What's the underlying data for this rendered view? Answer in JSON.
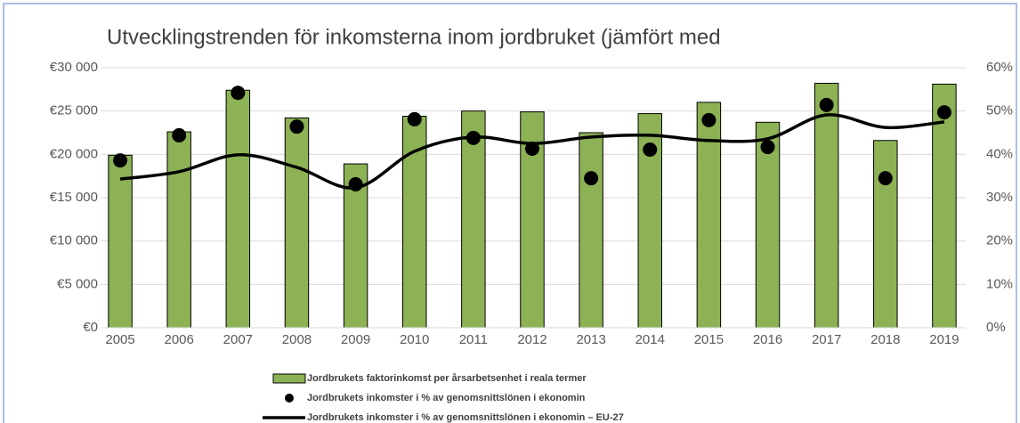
{
  "chart_data": {
    "type": "combo",
    "title": "Utvecklingstrenden för inkomsterna inom jordbruket (jämfört med",
    "categories": [
      "2005",
      "2006",
      "2007",
      "2008",
      "2009",
      "2010",
      "2011",
      "2012",
      "2013",
      "2014",
      "2015",
      "2016",
      "2017",
      "2018",
      "2019"
    ],
    "series": [
      {
        "name": "Jordbrukets faktorinkomst per årsarbetsenhet i reala termer",
        "type": "bar",
        "color": "#8db255",
        "values": [
          19900,
          22600,
          27400,
          24200,
          18900,
          24400,
          25000,
          24900,
          22500,
          24700,
          26000,
          23700,
          28200,
          21600,
          28100
        ]
      },
      {
        "name": "Jordbrukets inkomster i % av genomsnittslönen i ekonomin",
        "type": "scatter",
        "axis": "y2",
        "color": "#000000",
        "values": [
          38.6,
          44.4,
          54.2,
          46.4,
          33.1,
          48.1,
          43.8,
          41.3,
          34.5,
          41.1,
          47.9,
          41.7,
          51.4,
          34.5,
          49.7
        ]
      },
      {
        "name": "Jordbrukets inkomster i % av genomsnittslönen i ekonomin – EU-27",
        "type": "line",
        "axis": "y2",
        "color": "#000000",
        "values": [
          34.3,
          36.0,
          39.9,
          37.0,
          32.3,
          40.7,
          44.0,
          42.5,
          44.0,
          44.4,
          43.2,
          43.6,
          49.1,
          46.2,
          47.5
        ]
      }
    ],
    "ylim": [
      0,
      30000
    ],
    "yticks": [
      {
        "value": 0,
        "label": "€0"
      },
      {
        "value": 5000,
        "label": "€5 000"
      },
      {
        "value": 10000,
        "label": "€10 000"
      },
      {
        "value": 15000,
        "label": "€15 000"
      },
      {
        "value": 20000,
        "label": "€20 000"
      },
      {
        "value": 25000,
        "label": "€25 000"
      },
      {
        "value": 30000,
        "label": "€30 000"
      }
    ],
    "y2lim": [
      0,
      60
    ],
    "y2ticks": [
      {
        "value": 0,
        "label": "0%"
      },
      {
        "value": 10,
        "label": "10%"
      },
      {
        "value": 20,
        "label": "20%"
      },
      {
        "value": 30,
        "label": "30%"
      },
      {
        "value": 40,
        "label": "40%"
      },
      {
        "value": 50,
        "label": "50%"
      },
      {
        "value": 60,
        "label": "60%"
      }
    ],
    "grid": true,
    "legend": "bottom"
  }
}
